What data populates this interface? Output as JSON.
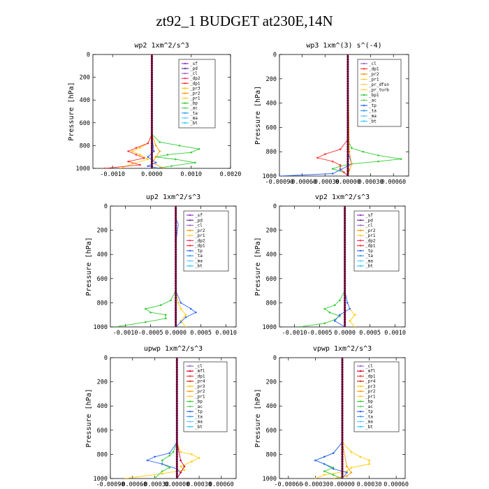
{
  "page": {
    "title": "zt92_1  BUDGET at230E,14N"
  },
  "chart_data": [
    {
      "type": "line",
      "title": "wp2  1xm^2/s^3",
      "ylabel": "Pressure [hPa]",
      "ylim": [
        1000,
        0
      ],
      "yticks": [
        0,
        200,
        400,
        600,
        800,
        1000
      ],
      "xlim": [
        -0.0015,
        0.002
      ],
      "xticks": [
        -0.001,
        0.0,
        0.001,
        0.002
      ],
      "xtick_labels": [
        "-0.0010",
        "0.0000",
        "0.0010",
        "0.0020"
      ],
      "legend": [
        "_sf",
        "_pd",
        "_cl",
        "_dp2",
        "_dp1",
        "_pr3",
        "_pr2",
        "_pr1",
        "_bp",
        "_ac",
        "_ta",
        "_ma",
        "_bt"
      ],
      "series": [
        {
          "name": "_pr3",
          "color": "#ffcc00",
          "pressure": [
            0,
            700,
            780,
            820,
            850,
            880,
            920,
            960,
            1000
          ],
          "values": [
            0,
            0,
            -0.0001,
            -0.0003,
            -0.0005,
            -0.0003,
            -0.0001,
            -0.0005,
            -0.0008
          ]
        },
        {
          "name": "_bp",
          "color": "#33cc33",
          "pressure": [
            0,
            700,
            770,
            800,
            830,
            860,
            880,
            900,
            920,
            950,
            980,
            1000
          ],
          "values": [
            0,
            0,
            0.0002,
            0.0007,
            0.0012,
            0.001,
            0.0004,
            0.0001,
            0.0006,
            0.0011,
            0.0005,
            0.0001
          ]
        },
        {
          "name": "_dp1",
          "color": "#ff3333",
          "pressure": [
            0,
            700,
            780,
            820,
            850,
            880,
            910,
            940,
            970,
            1000
          ],
          "values": [
            0,
            0,
            -0.0001,
            -0.0004,
            -0.0006,
            -0.0004,
            -0.0002,
            -0.0006,
            -0.0003,
            -0.0012
          ]
        },
        {
          "name": "_pr2",
          "color": "#ff9900",
          "pressure": [
            0,
            700,
            800,
            850,
            900,
            950,
            1000
          ],
          "values": [
            0,
            0,
            0.0001,
            0.0002,
            0.0001,
            0.0,
            0.0003
          ]
        },
        {
          "name": "_ta",
          "color": "#3366ff",
          "pressure": [
            0,
            700,
            850,
            900,
            950,
            980,
            1000
          ],
          "values": [
            0,
            0,
            5e-05,
            -0.0001,
            0.0001,
            -0.0001,
            0.0002
          ]
        },
        {
          "name": "_bt",
          "color": "#660033",
          "pressure": [
            0,
            100,
            200,
            300,
            400,
            500,
            600,
            700,
            800,
            900,
            1000
          ],
          "values": [
            0,
            0,
            0,
            0,
            0,
            0,
            0,
            0,
            0,
            0,
            0
          ]
        }
      ]
    },
    {
      "type": "line",
      "title": "wp3  1xm^(3) s^(-4)",
      "ylabel": "Pressure [hPa]",
      "ylim": [
        1000,
        0
      ],
      "yticks": [
        0,
        200,
        400,
        600,
        800,
        1000
      ],
      "xlim": [
        -0.0009,
        0.0008
      ],
      "xticks": [
        -0.0009,
        -0.0006,
        -0.0003,
        0.0,
        0.0003,
        0.0006
      ],
      "xtick_labels": [
        "-0.00090",
        "-0.00060",
        "-0.00030",
        "0.00000",
        "0.00030",
        "0.00060"
      ],
      "legend": [
        "_cl",
        "_dp1",
        "_pr2",
        "_pr1",
        "_pr_dfsn",
        "_pr_turb",
        "_bp1",
        "_ac",
        "_tp",
        "_ta",
        "_ma",
        "_bt"
      ],
      "series": [
        {
          "name": "_bp1",
          "color": "#33cc33",
          "pressure": [
            0,
            700,
            770,
            800,
            830,
            860,
            880,
            900,
            920,
            940,
            970,
            1000
          ],
          "values": [
            0,
            0,
            5e-05,
            0.0002,
            0.0004,
            0.0007,
            0.0004,
            5e-05,
            -0.0001,
            -0.0002,
            -5e-05,
            0
          ]
        },
        {
          "name": "_dp1",
          "color": "#ff3333",
          "pressure": [
            0,
            700,
            780,
            820,
            850,
            880,
            910,
            940,
            970,
            1000
          ],
          "values": [
            0,
            0,
            -0.0001,
            -0.0003,
            -0.0004,
            -0.0002,
            -0.0001,
            -0.0001,
            -5e-05,
            0
          ]
        },
        {
          "name": "_tp",
          "color": "#3366ff",
          "pressure": [
            0,
            800,
            900,
            950,
            980,
            1000
          ],
          "values": [
            0,
            0,
            5e-05,
            -0.0001,
            -0.0002,
            -0.0009
          ]
        },
        {
          "name": "_pr2",
          "color": "#ff9900",
          "pressure": [
            0,
            800,
            900,
            950,
            1000
          ],
          "values": [
            0,
            2e-05,
            5e-05,
            2e-05,
            0
          ]
        },
        {
          "name": "_bt",
          "color": "#660033",
          "pressure": [
            0,
            100,
            200,
            300,
            400,
            500,
            600,
            700,
            800,
            900,
            1000
          ],
          "values": [
            0,
            0,
            0,
            0,
            0,
            0,
            0,
            0,
            0,
            0,
            0
          ]
        }
      ]
    },
    {
      "type": "line",
      "title": "up2  1xm^2/s^3",
      "ylabel": "Pressure [hPa]",
      "ylim": [
        1000,
        0
      ],
      "yticks": [
        0,
        200,
        400,
        600,
        800,
        1000
      ],
      "xlim": [
        -0.0013,
        0.0012
      ],
      "xticks": [
        -0.001,
        -0.0005,
        0.0,
        0.0005,
        0.001
      ],
      "xtick_labels": [
        "-0.0010",
        "-0.0005",
        "0.0000",
        "0.0005",
        "0.0010"
      ],
      "legend": [
        "_sf",
        "_pd",
        "_cl",
        "_pr2",
        "_pr1",
        "_dp2",
        "_dp1",
        "_tp",
        "_ta",
        "_ma",
        "_bt"
      ],
      "series": [
        {
          "name": "_dp1",
          "color": "#33cc33",
          "pressure": [
            0,
            700,
            780,
            820,
            850,
            880,
            900,
            930,
            960,
            1000
          ],
          "values": [
            0,
            0,
            -0.0001,
            -0.0003,
            -0.0006,
            -0.0005,
            -0.0002,
            -0.0002,
            -0.0006,
            -0.0012
          ]
        },
        {
          "name": "_pr1",
          "color": "#ffcc00",
          "pressure": [
            0,
            700,
            800,
            850,
            900,
            950,
            1000
          ],
          "values": [
            0,
            0,
            5e-05,
            0.0001,
            0.0002,
            0.0001,
            0.0002
          ]
        },
        {
          "name": "_tp",
          "color": "#3366ff",
          "pressure": [
            0,
            100,
            150,
            300,
            700,
            800,
            850,
            880,
            920,
            960,
            1000
          ],
          "values": [
            0,
            0,
            5e-05,
            0.0,
            0,
            0.0001,
            0.0003,
            0.0004,
            0.0002,
            0.0001,
            0
          ]
        },
        {
          "name": "_bt",
          "color": "#660033",
          "pressure": [
            0,
            100,
            200,
            300,
            400,
            500,
            600,
            700,
            800,
            900,
            1000
          ],
          "values": [
            0,
            0,
            0,
            0,
            0,
            0,
            0,
            0,
            0,
            0,
            0
          ]
        }
      ]
    },
    {
      "type": "line",
      "title": "vp2  1xm^2/s^3",
      "ylabel": "Pressure [hPa]",
      "ylim": [
        1000,
        0
      ],
      "yticks": [
        0,
        200,
        400,
        600,
        800,
        1000
      ],
      "xlim": [
        -0.0013,
        0.0012
      ],
      "xticks": [
        -0.001,
        -0.0005,
        0.0,
        0.0005,
        0.001
      ],
      "xtick_labels": [
        "-0.0010",
        "-0.0005",
        "0.0000",
        "0.0005",
        "0.0010"
      ],
      "legend": [
        "_sf",
        "_pd",
        "_cl",
        "_pr2",
        "_pr1",
        "_dp2",
        "_dp1",
        "_tp",
        "_ta",
        "_ma",
        "_bt"
      ],
      "series": [
        {
          "name": "_dp1",
          "color": "#33cc33",
          "pressure": [
            0,
            700,
            780,
            820,
            850,
            880,
            910,
            940,
            970,
            1000
          ],
          "values": [
            0,
            0,
            -0.0001,
            -0.0002,
            -0.0004,
            -0.0003,
            -0.0001,
            -0.0002,
            -0.0004,
            -0.0009
          ]
        },
        {
          "name": "_pr1",
          "color": "#ffcc00",
          "pressure": [
            0,
            700,
            800,
            850,
            900,
            950,
            1000
          ],
          "values": [
            0,
            0,
            5e-05,
            0.0001,
            0.0002,
            0.0001,
            0.0002
          ]
        },
        {
          "name": "_tp",
          "color": "#3366ff",
          "pressure": [
            0,
            700,
            800,
            850,
            900,
            950,
            1000
          ],
          "values": [
            0,
            0,
            5e-05,
            0.0001,
            -0.0001,
            -0.0002,
            0
          ]
        },
        {
          "name": "_bt",
          "color": "#660033",
          "pressure": [
            0,
            100,
            200,
            300,
            400,
            500,
            600,
            700,
            800,
            900,
            1000
          ],
          "values": [
            0,
            0,
            0,
            0,
            0,
            0,
            0,
            0,
            0,
            0,
            0
          ]
        }
      ]
    },
    {
      "type": "line",
      "title": "upwp  1xm^2/s^3",
      "ylabel": "Pressure [hPa]",
      "ylim": [
        1000,
        0
      ],
      "yticks": [
        0,
        200,
        400,
        600,
        800,
        1000
      ],
      "xlim": [
        -0.0009,
        0.0008
      ],
      "xticks": [
        -0.0009,
        -0.0006,
        -0.0003,
        0.0,
        0.0003,
        0.0006
      ],
      "xtick_labels": [
        "-0.00090",
        "-0.00060",
        "-0.00030",
        "0.00000",
        "0.00030",
        "0.00060"
      ],
      "legend": [
        "_cl",
        "_mfl",
        "_dp1",
        "_pr4",
        "_pr3",
        "_pr2",
        "_pr1",
        "_bp",
        "_ac",
        "_tp",
        "_ta",
        "_ma",
        "_bt"
      ],
      "series": [
        {
          "name": "_pr2",
          "color": "#ffcc00",
          "pressure": [
            0,
            700,
            780,
            800,
            830,
            860,
            900,
            930,
            960,
            1000
          ],
          "values": [
            0,
            0,
            5e-05,
            0.0002,
            0.0003,
            0.0002,
            5e-05,
            0.0001,
            -0.0002,
            -0.0007
          ]
        },
        {
          "name": "_bp",
          "color": "#33cc33",
          "pressure": [
            0,
            700,
            780,
            810,
            850,
            880,
            910,
            940,
            1000
          ],
          "values": [
            0,
            0,
            -5e-05,
            -0.0001,
            -0.0002,
            -0.0002,
            -0.0001,
            -0.0002,
            -0.0003
          ]
        },
        {
          "name": "_tp",
          "color": "#3366ff",
          "pressure": [
            0,
            700,
            790,
            820,
            850,
            880,
            920,
            950,
            1000
          ],
          "values": [
            0,
            0,
            -0.0001,
            -0.0003,
            -0.0004,
            -0.0002,
            0.0,
            5e-05,
            0
          ]
        },
        {
          "name": "_mfl",
          "color": "#cc0033",
          "pressure": [
            0,
            700,
            850,
            900,
            950,
            1000
          ],
          "values": [
            0,
            0,
            5e-05,
            0.0001,
            5e-05,
            0
          ]
        },
        {
          "name": "_bt",
          "color": "#660033",
          "pressure": [
            0,
            100,
            200,
            300,
            400,
            500,
            600,
            700,
            800,
            900,
            1000
          ],
          "values": [
            0,
            0,
            0,
            0,
            0,
            0,
            0,
            0,
            0,
            0,
            0
          ]
        }
      ]
    },
    {
      "type": "line",
      "title": "vpwp  1xm^2/s^3",
      "ylabel": "Pressure [hPa]",
      "ylim": [
        1000,
        0
      ],
      "yticks": [
        0,
        200,
        400,
        600,
        800,
        1000
      ],
      "xlim": [
        -0.0007,
        0.0007
      ],
      "xticks": [
        -0.0006,
        -0.0003,
        0.0,
        0.0003,
        0.0006
      ],
      "xtick_labels": [
        "-0.00060",
        "-0.00030",
        "0.00000",
        "0.00030",
        "0.00060"
      ],
      "legend": [
        "_cl",
        "_mfl",
        "_dp1",
        "_pr4",
        "_pr3",
        "_pr2",
        "_pr1",
        "_bp",
        "_ac",
        "_tp",
        "_ta",
        "_ma",
        "_bt"
      ],
      "series": [
        {
          "name": "_pr2",
          "color": "#ffcc00",
          "pressure": [
            0,
            700,
            780,
            820,
            850,
            880,
            910,
            940,
            970,
            1000
          ],
          "values": [
            0,
            0,
            0.0001,
            0.0002,
            0.0003,
            0.0003,
            0.0001,
            5e-05,
            -0.0002,
            -0.0003
          ]
        },
        {
          "name": "_bp",
          "color": "#33cc33",
          "pressure": [
            0,
            700,
            790,
            820,
            850,
            880,
            910,
            940,
            970,
            1000
          ],
          "values": [
            0,
            0,
            -0.0001,
            -0.0002,
            -0.0003,
            -0.0002,
            -0.0001,
            -0.0002,
            -0.0001,
            0
          ]
        },
        {
          "name": "_tp",
          "color": "#3366ff",
          "pressure": [
            0,
            700,
            790,
            820,
            850,
            880,
            920,
            950,
            1000
          ],
          "values": [
            0,
            0,
            -0.0001,
            -0.0002,
            -0.0003,
            -0.0002,
            -0.0001,
            5e-05,
            0
          ]
        },
        {
          "name": "_pr1",
          "color": "#ff9900",
          "pressure": [
            0,
            700,
            900,
            950,
            980,
            1000
          ],
          "values": [
            0,
            0,
            5e-05,
            0.0001,
            5e-05,
            -0.0001
          ]
        },
        {
          "name": "_bt",
          "color": "#660033",
          "pressure": [
            0,
            100,
            200,
            300,
            400,
            500,
            600,
            700,
            800,
            900,
            1000
          ],
          "values": [
            0,
            0,
            0,
            0,
            0,
            0,
            0,
            0,
            0,
            0,
            0
          ]
        }
      ]
    }
  ],
  "legend_colors": {
    "_sf": "#9933cc",
    "_pd": "#663399",
    "_cl": "#9966cc",
    "_mfl": "#cc0033",
    "_dp2": "#ff3366",
    "_dp1": "#ff3333",
    "_pr4": "#cc3300",
    "_pr3": "#ffcc00",
    "_pr2": "#ff9900",
    "_pr1": "#ffcc33",
    "_pr_dfsn": "#ffcc66",
    "_pr_turb": "#ffdd44",
    "_bp": "#33cc33",
    "_bp1": "#33cc33",
    "_ac": "#66cc66",
    "_tp": "#3366ff",
    "_ta": "#3399ff",
    "_ma": "#66ccff",
    "_bt": "#33ccff"
  }
}
